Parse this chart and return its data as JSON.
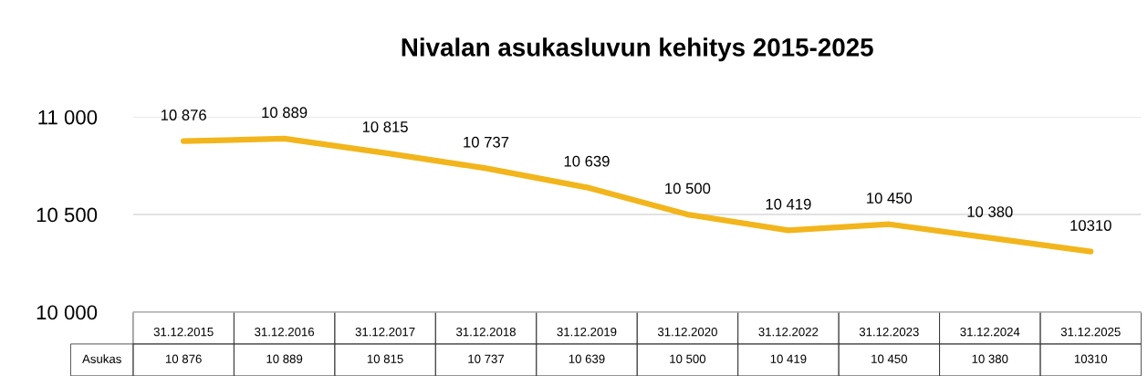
{
  "chart_data": {
    "type": "line",
    "title": "Nivalan asukasluvun kehitys 2015-2025",
    "categories": [
      "31.12.2015",
      "31.12.2016",
      "31.12.2017",
      "31.12.2018",
      "31.12.2019",
      "31.12.2020",
      "31.12.2022",
      "31.12.2023",
      "31.12.2024",
      "31.12.2025"
    ],
    "series": [
      {
        "name": "Asukas",
        "color": "#f2b51c",
        "values": [
          10876,
          10889,
          10815,
          10737,
          10639,
          10500,
          10419,
          10450,
          10380,
          10310
        ],
        "value_labels": [
          "10 876",
          "10 889",
          "10 815",
          "10 737",
          "10 639",
          "10 500",
          "10 419",
          "10 450",
          "10 380",
          "10310"
        ]
      }
    ],
    "ylim": [
      10000,
      11000
    ],
    "yticks": [
      {
        "value": 10000,
        "label": "10 000"
      },
      {
        "value": 10500,
        "label": "10 500"
      },
      {
        "value": 11000,
        "label": "11 000"
      }
    ],
    "grid": "y"
  }
}
